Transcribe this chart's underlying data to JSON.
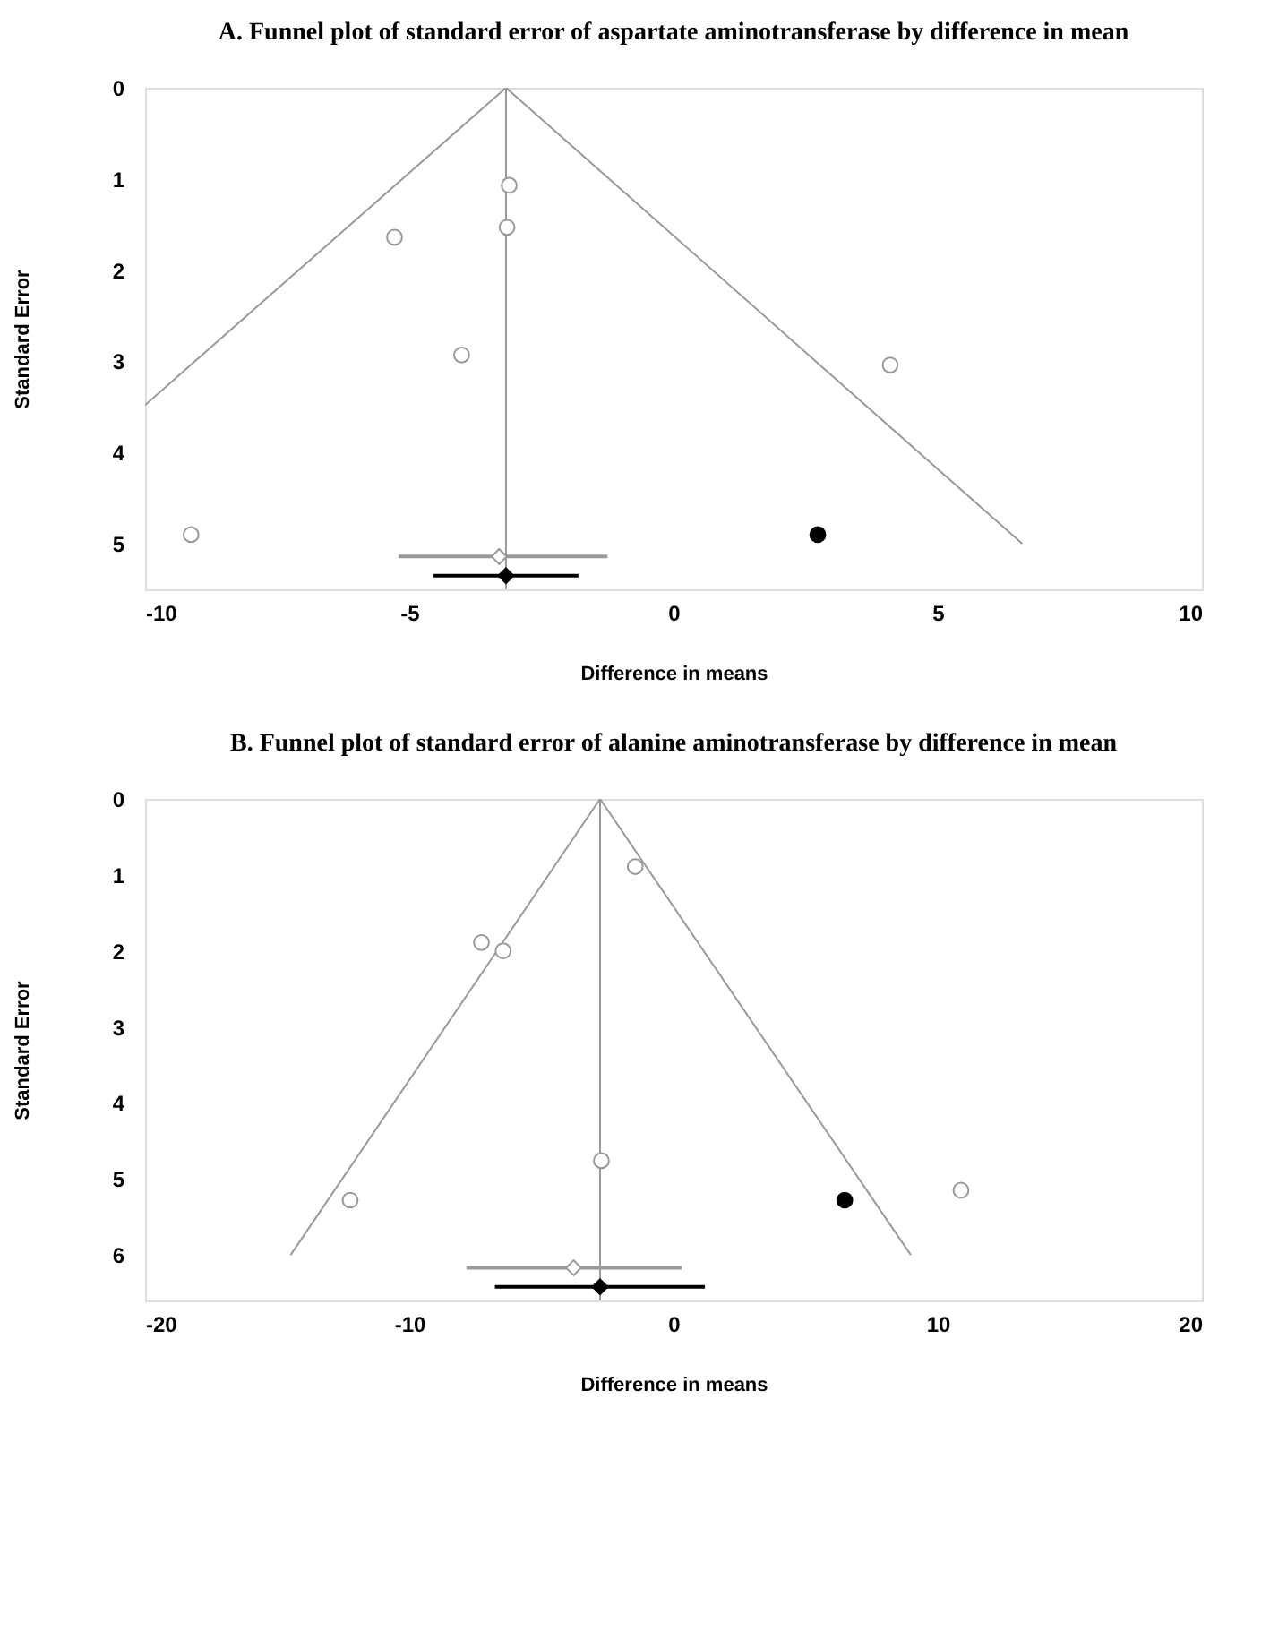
{
  "chart_data": [
    {
      "type": "scatter",
      "title": "A.  Funnel plot of standard error of aspartate aminotransferase by difference in mean",
      "xlabel": "Difference in means",
      "ylabel": "Standard Error",
      "xlim": [
        -10,
        10
      ],
      "xticks": [
        -10,
        -5,
        0,
        5,
        10
      ],
      "ylim": [
        5.5,
        0
      ],
      "yticks": [
        0,
        1,
        2,
        3,
        4,
        5
      ],
      "grid": false,
      "ref_lines": [
        {
          "axis": "x",
          "value": -3.17,
          "color": "#999999"
        }
      ],
      "series": [
        {
          "type": "line",
          "color": "#999999",
          "x": [
            -10,
            -3.17,
            6.6
          ],
          "values": [
            3.48,
            0,
            5
          ]
        },
        {
          "color": "#999999",
          "marker": "circle",
          "x": [
            -3.11,
            -5.28,
            -3.15,
            -4.01,
            4.1,
            -9.13
          ],
          "values": [
            1.07,
            1.64,
            1.53,
            2.93,
            3.04,
            4.9
          ]
        },
        {
          "color": "#000000",
          "marker": "circle",
          "x": [
            2.73
          ],
          "values": [
            4.9
          ]
        },
        {
          "color": "#999999",
          "marker": "diamond",
          "x": [
            -3.3
          ],
          "values": [
            5.14
          ],
          "xerrors": [
            [
              -5.2,
              -1.25
            ]
          ]
        },
        {
          "color": "#000000",
          "marker": "diamond",
          "x": [
            -3.17
          ],
          "values": [
            5.35
          ],
          "xerrors": [
            [
              -4.54,
              -1.8
            ]
          ]
        }
      ]
    },
    {
      "type": "scatter",
      "title": "B.   Funnel plot of standard error of alanine aminotransferase by difference in mean",
      "xlabel": "Difference in means",
      "ylabel": "Standard Error",
      "xlim": [
        -20,
        20
      ],
      "xticks": [
        -20,
        -10,
        0,
        10,
        20
      ],
      "ylim": [
        6.6,
        0
      ],
      "yticks": [
        0,
        1,
        2,
        3,
        4,
        5,
        6
      ],
      "grid": false,
      "ref_lines": [
        {
          "axis": "x",
          "value": -2.78,
          "color": "#999999"
        }
      ],
      "series": [
        {
          "type": "line",
          "color": "#999999",
          "x": [
            -14.49,
            -2.78,
            8.98
          ],
          "values": [
            6,
            0,
            6
          ]
        },
        {
          "color": "#999999",
          "marker": "circle",
          "x": [
            -1.45,
            -7.27,
            -6.45,
            -2.73,
            -12.24,
            10.88
          ],
          "values": [
            0.89,
            1.89,
            2.0,
            4.76,
            5.28,
            5.15
          ]
        },
        {
          "color": "#000000",
          "marker": "circle",
          "x": [
            6.48
          ],
          "values": [
            5.28
          ]
        },
        {
          "color": "#999999",
          "marker": "diamond",
          "x": [
            -3.78
          ],
          "values": [
            6.17
          ],
          "xerrors": [
            [
              -7.84,
              0.31
            ]
          ]
        },
        {
          "color": "#000000",
          "marker": "diamond",
          "x": [
            -2.78
          ],
          "values": [
            6.42
          ],
          "xerrors": [
            [
              -6.76,
              1.19
            ]
          ]
        }
      ]
    }
  ]
}
